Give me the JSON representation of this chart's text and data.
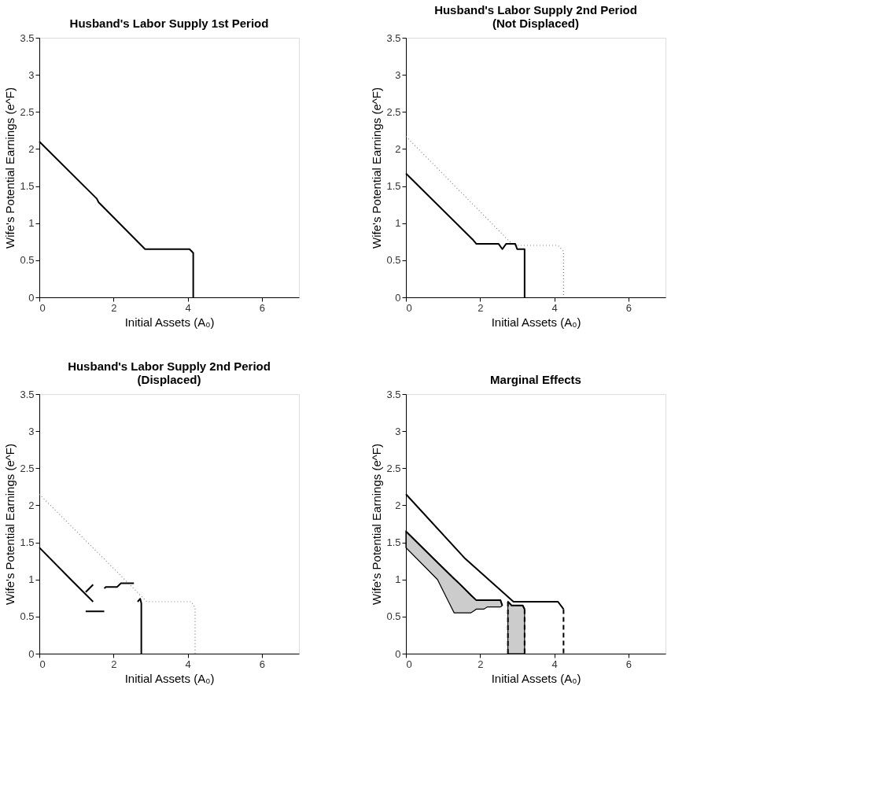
{
  "chart_data": [
    {
      "type": "line",
      "title": "Husband's Labor Supply 1st Period",
      "xlabel": "Initial Assets (A₀)",
      "ylabel": "Wife's Potential Earnings (e^F)",
      "xlim": [
        0,
        7
      ],
      "ylim": [
        0,
        3.5
      ],
      "xticks": [
        0,
        2,
        4,
        6
      ],
      "yticks": [
        0,
        0.5,
        1,
        1.5,
        2,
        2.5,
        3,
        3.5
      ],
      "grid": false,
      "series": [
        {
          "color": "#000000",
          "line_style": "solid",
          "x": [
            0,
            1.55,
            1.6,
            2.85,
            4.05,
            4.15,
            4.15
          ],
          "values": [
            2.1,
            1.33,
            1.28,
            0.65,
            0.65,
            0.6,
            0
          ]
        }
      ]
    },
    {
      "type": "line",
      "title": "Husband's Labor Supply 2nd Period\n(Not Displaced)",
      "xlabel": "Initial Assets (A₀)",
      "ylabel": "Wife's Potential Earnings (e^F)",
      "xlim": [
        0,
        7
      ],
      "ylim": [
        0,
        3.5
      ],
      "xticks": [
        0,
        2,
        4,
        6
      ],
      "yticks": [
        0,
        0.5,
        1,
        1.5,
        2,
        2.5,
        3,
        3.5
      ],
      "grid": false,
      "series": [
        {
          "color": "#808080",
          "line_style": "dotted",
          "x": [
            0,
            2.9,
            4.1,
            4.25,
            4.25
          ],
          "values": [
            2.17,
            0.7,
            0.7,
            0.62,
            0
          ]
        },
        {
          "color": "#000000",
          "line_style": "solid",
          "x": [
            0,
            1.8,
            1.9,
            2.5,
            2.6,
            2.7,
            2.95,
            3.0,
            3.2,
            3.2
          ],
          "values": [
            1.67,
            0.78,
            0.72,
            0.72,
            0.65,
            0.72,
            0.72,
            0.65,
            0.65,
            0
          ]
        }
      ]
    },
    {
      "type": "line",
      "title": "Husband's Labor Supply 2nd Period\n(Displaced)",
      "xlabel": "Initial Assets (A₀)",
      "ylabel": "Wife's Potential Earnings (e^F)",
      "xlim": [
        0,
        7
      ],
      "ylim": [
        0,
        3.5
      ],
      "xticks": [
        0,
        2,
        4,
        6
      ],
      "yticks": [
        0,
        0.5,
        1,
        1.5,
        2,
        2.5,
        3,
        3.5
      ],
      "grid": false,
      "series": [
        {
          "color": "#808080",
          "line_style": "dotted",
          "x": [
            0,
            2.9,
            4.1,
            4.2,
            4.2
          ],
          "values": [
            2.15,
            0.7,
            0.7,
            0.62,
            0
          ]
        },
        {
          "color": "#000000",
          "line_style": "solid",
          "x": [
            0,
            0.85,
            1.45,
            null,
            1.25,
            1.45,
            null,
            1.25,
            1.75,
            null,
            1.75,
            1.8,
            2.1,
            2.2,
            2.55,
            null,
            2.65,
            2.72,
            2.75,
            2.75
          ],
          "values": [
            1.43,
            1.0,
            0.7,
            null,
            0.83,
            0.93,
            null,
            0.57,
            0.57,
            null,
            0.88,
            0.9,
            0.9,
            0.95,
            0.95,
            null,
            0.7,
            0.74,
            0.68,
            0
          ]
        }
      ]
    },
    {
      "type": "line",
      "title": "Marginal Effects",
      "xlabel": "Initial Assets (A₀)",
      "ylabel": "Wife's Potential Earnings (e^F)",
      "xlim": [
        0,
        7
      ],
      "ylim": [
        0,
        3.5
      ],
      "xticks": [
        0,
        2,
        4,
        6
      ],
      "yticks": [
        0,
        0.5,
        1,
        1.5,
        2,
        2.5,
        3,
        3.5
      ],
      "grid": false,
      "series": [
        {
          "color": "#000000",
          "line_style": "solid",
          "x": [
            0,
            0.85,
            1.3,
            1.45,
            1.75,
            1.9,
            2.1,
            2.2,
            2.55,
            2.6
          ],
          "values": [
            1.65,
            1.23,
            1.01,
            0.94,
            0.79,
            0.72,
            0.72,
            0.72,
            0.72,
            0.65
          ],
          "upper": [
            1.65,
            1.23,
            1.01,
            0.94,
            0.79,
            0.72,
            0.72,
            0.72,
            0.72,
            0.65
          ],
          "lower": [
            1.43,
            1.0,
            0.55,
            0.55,
            0.55,
            0.6,
            0.6,
            0.63,
            0.63,
            0.65
          ]
        },
        {
          "color": "#000000",
          "line_style": "solid",
          "x": [
            2.75,
            2.85,
            3.15,
            3.2
          ],
          "values": [
            0.7,
            0.65,
            0.65,
            0.6
          ],
          "upper": [
            0.7,
            0.65,
            0.65,
            0.6
          ],
          "lower": [
            0,
            0,
            0,
            0
          ]
        },
        {
          "color": "#000000",
          "line_style": "solid",
          "x": [
            0,
            1.6,
            2.9,
            4.1,
            4.25
          ],
          "values": [
            2.15,
            1.28,
            0.7,
            0.7,
            0.6
          ]
        },
        {
          "color": "#000000",
          "line_style": "dashed",
          "x": [
            4.25,
            4.25,
            null,
            2.75,
            2.75,
            null,
            3.2,
            3.2
          ],
          "values": [
            0.6,
            0,
            null,
            0.7,
            0,
            null,
            0.6,
            0
          ]
        }
      ]
    }
  ]
}
